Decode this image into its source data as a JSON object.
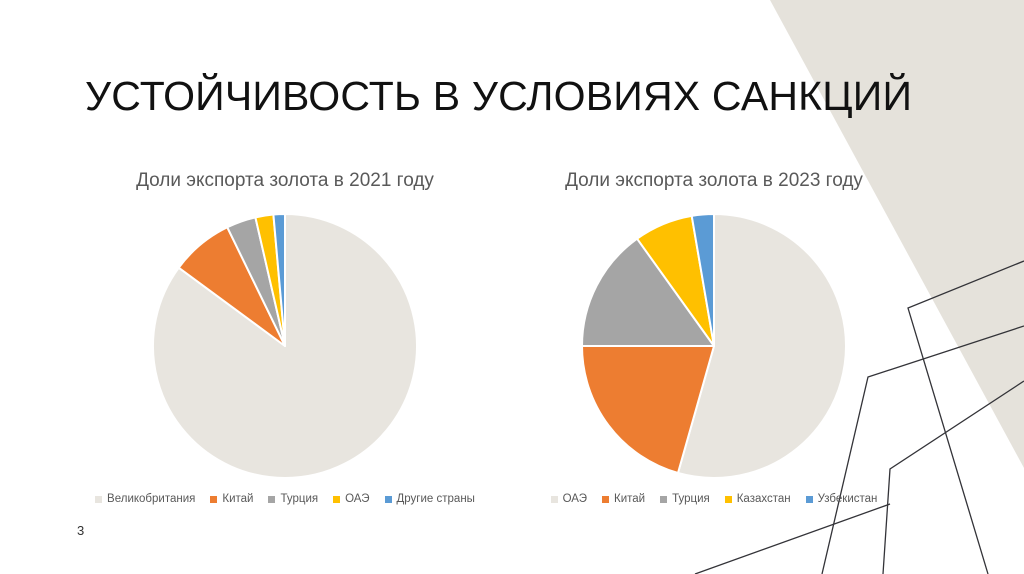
{
  "slide": {
    "title": "УСТОЙЧИВОСТЬ В УСЛОВИЯХ САНКЦИЙ",
    "page_number": "3"
  },
  "colors": {
    "background": "#ffffff",
    "title_text": "#111111",
    "chart_title_text": "#595959",
    "legend_text": "#595959",
    "accent_shape": "#e5e2db",
    "decor_line": "#333338",
    "slice_border": "#ffffff"
  },
  "chart_data": [
    {
      "type": "pie",
      "title": "Доли экспорта золота в 2021 году",
      "legend_position": "bottom",
      "start_angle_deg": 0,
      "direction": "clockwise",
      "unit": "percent",
      "series": [
        {
          "name": "Великобритания",
          "value": 85.1,
          "color": "#e8e5df"
        },
        {
          "name": "Китай",
          "value": 7.7,
          "color": "#ed7d31"
        },
        {
          "name": "Турция",
          "value": 3.6,
          "color": "#a5a5a5"
        },
        {
          "name": "ОАЭ",
          "value": 2.2,
          "color": "#ffc000"
        },
        {
          "name": "Другие страны",
          "value": 1.4,
          "color": "#5b9bd5"
        }
      ]
    },
    {
      "type": "pie",
      "title": "Доли экспорта золота в 2023 году",
      "legend_position": "bottom",
      "start_angle_deg": 0,
      "direction": "clockwise",
      "unit": "percent",
      "series": [
        {
          "name": "ОАЭ",
          "value": 54.4,
          "color": "#e8e5df"
        },
        {
          "name": "Китай",
          "value": 20.6,
          "color": "#ed7d31"
        },
        {
          "name": "Турция",
          "value": 15.1,
          "color": "#a5a5a5"
        },
        {
          "name": "Казахстан",
          "value": 7.2,
          "color": "#ffc000"
        },
        {
          "name": "Узбекистан",
          "value": 2.7,
          "color": "#5b9bd5"
        }
      ]
    }
  ]
}
